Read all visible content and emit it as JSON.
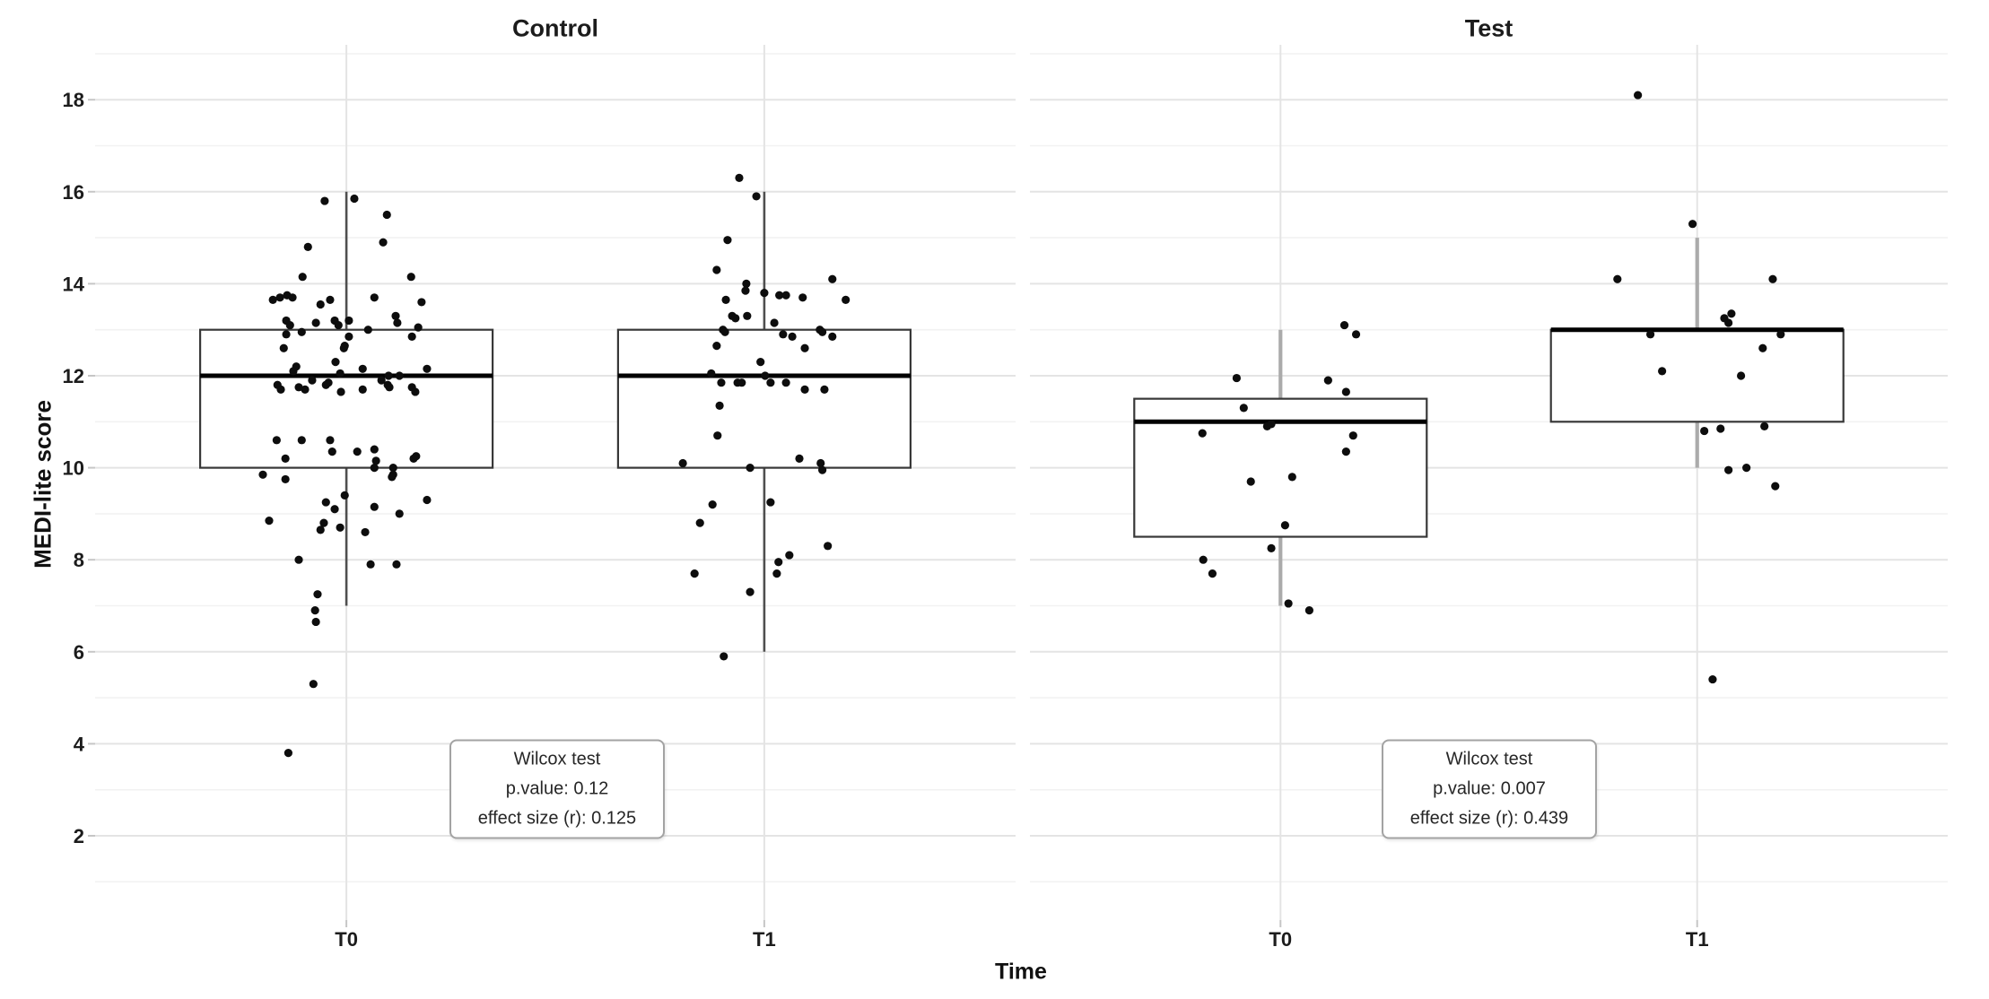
{
  "figure": {
    "background": "#ffffff"
  },
  "chart_data": {
    "type": "boxplot",
    "subtype": "faceted boxplot with jittered points",
    "x_label": "Time",
    "y_label": "MEDI-lite score",
    "categories": [
      "T0",
      "T1"
    ],
    "y_axis": {
      "tick_labels": [
        "18",
        "16",
        "14",
        "12",
        "10",
        "8",
        "6",
        "4",
        "2"
      ],
      "tick_values": [
        18,
        16,
        14,
        12,
        10,
        8,
        6,
        4,
        2
      ],
      "minor_values": [
        19,
        17,
        15,
        13,
        11,
        9,
        7,
        5,
        3,
        1
      ],
      "range": [
        0.2,
        19.2
      ],
      "grid": "on"
    },
    "colors": {
      "background": "#ffffff",
      "grid_major": "#e4e4e4",
      "grid_minor": "#f2f2f2",
      "box_fill": "#ffffff",
      "box_stroke": "#383838",
      "median": "#000000",
      "whisker_control": "#4f4f4f",
      "whisker_test": "#ababab",
      "point": "#0d0d0d",
      "tick": "#c6c6c6",
      "text": "#1c1c1c",
      "annotation_border": "#a3a3a3"
    },
    "facets": [
      {
        "title": "Control",
        "annotation": {
          "lines": [
            "Wilcox test",
            "p.value: 0.12",
            "effect size (r): 0.125"
          ]
        },
        "boxes": [
          {
            "category": "T0",
            "whisker_low": 7,
            "q1": 10,
            "median": 12,
            "q3": 13,
            "whisker_high": 16
          },
          {
            "category": "T1",
            "whisker_low": 6,
            "q1": 10,
            "median": 12,
            "q3": 13,
            "whisker_high": 16
          }
        ],
        "points": {
          "T0": [
            [
              -0.052,
              15.8
            ],
            [
              0.019,
              15.85
            ],
            [
              0.097,
              15.5
            ],
            [
              0.088,
              14.9
            ],
            [
              -0.092,
              14.8
            ],
            [
              -0.105,
              14.15
            ],
            [
              0.155,
              14.15
            ],
            [
              -0.176,
              13.65
            ],
            [
              -0.159,
              13.7
            ],
            [
              -0.142,
              13.75
            ],
            [
              -0.129,
              13.7
            ],
            [
              -0.062,
              13.55
            ],
            [
              -0.039,
              13.65
            ],
            [
              0.067,
              13.7
            ],
            [
              0.18,
              13.6
            ],
            [
              -0.144,
              13.2
            ],
            [
              -0.135,
              13.1
            ],
            [
              -0.073,
              13.15
            ],
            [
              -0.028,
              13.2
            ],
            [
              -0.019,
              13.1
            ],
            [
              0.006,
              13.2
            ],
            [
              0.052,
              13.0
            ],
            [
              0.118,
              13.3
            ],
            [
              0.122,
              13.15
            ],
            [
              0.157,
              12.85
            ],
            [
              0.172,
              13.05
            ],
            [
              -0.144,
              12.9
            ],
            [
              -0.107,
              12.95
            ],
            [
              0.006,
              12.85
            ],
            [
              -0.004,
              12.65
            ],
            [
              -0.006,
              12.6
            ],
            [
              -0.15,
              12.6
            ],
            [
              -0.026,
              12.3
            ],
            [
              -0.015,
              12.05
            ],
            [
              -0.127,
              12.1
            ],
            [
              -0.12,
              12.2
            ],
            [
              0.039,
              12.15
            ],
            [
              0.101,
              12.0
            ],
            [
              0.127,
              12.0
            ],
            [
              0.193,
              12.15
            ],
            [
              -0.082,
              11.9
            ],
            [
              -0.165,
              11.8
            ],
            [
              -0.157,
              11.7
            ],
            [
              -0.114,
              11.75
            ],
            [
              -0.099,
              11.7
            ],
            [
              -0.049,
              11.8
            ],
            [
              -0.043,
              11.85
            ],
            [
              -0.013,
              11.65
            ],
            [
              0.039,
              11.7
            ],
            [
              0.084,
              11.9
            ],
            [
              0.099,
              11.8
            ],
            [
              0.103,
              11.75
            ],
            [
              0.157,
              11.75
            ],
            [
              0.165,
              11.65
            ],
            [
              -0.167,
              10.6
            ],
            [
              -0.107,
              10.6
            ],
            [
              -0.039,
              10.6
            ],
            [
              -0.034,
              10.35
            ],
            [
              0.026,
              10.35
            ],
            [
              0.067,
              10.4
            ],
            [
              0.071,
              10.15
            ],
            [
              -0.146,
              10.2
            ],
            [
              0.161,
              10.2
            ],
            [
              0.167,
              10.25
            ],
            [
              0.067,
              10.0
            ],
            [
              0.112,
              10.0
            ],
            [
              0.112,
              9.85
            ],
            [
              0.109,
              9.8
            ],
            [
              -0.2,
              9.85
            ],
            [
              -0.146,
              9.75
            ],
            [
              -0.004,
              9.4
            ],
            [
              -0.049,
              9.25
            ],
            [
              -0.028,
              9.1
            ],
            [
              0.067,
              9.15
            ],
            [
              0.193,
              9.3
            ],
            [
              0.127,
              9.0
            ],
            [
              -0.185,
              8.85
            ],
            [
              -0.054,
              8.8
            ],
            [
              -0.062,
              8.65
            ],
            [
              -0.015,
              8.7
            ],
            [
              0.045,
              8.6
            ],
            [
              -0.114,
              8.0
            ],
            [
              0.058,
              7.9
            ],
            [
              0.12,
              7.9
            ],
            [
              -0.069,
              7.25
            ],
            [
              -0.075,
              6.9
            ],
            [
              -0.073,
              6.65
            ],
            [
              -0.079,
              5.3
            ],
            [
              -0.139,
              3.8
            ]
          ],
          "T1": [
            [
              -0.06,
              16.3
            ],
            [
              -0.019,
              15.9
            ],
            [
              -0.088,
              14.95
            ],
            [
              -0.114,
              14.3
            ],
            [
              0.163,
              14.1
            ],
            [
              -0.043,
              14.0
            ],
            [
              -0.045,
              13.85
            ],
            [
              0.0,
              13.8
            ],
            [
              0.036,
              13.75
            ],
            [
              0.052,
              13.75
            ],
            [
              0.092,
              13.7
            ],
            [
              0.195,
              13.65
            ],
            [
              -0.092,
              13.65
            ],
            [
              -0.077,
              13.3
            ],
            [
              -0.069,
              13.25
            ],
            [
              -0.041,
              13.3
            ],
            [
              0.024,
              13.15
            ],
            [
              -0.099,
              13.0
            ],
            [
              -0.094,
              12.95
            ],
            [
              0.133,
              13.0
            ],
            [
              0.139,
              12.95
            ],
            [
              0.045,
              12.9
            ],
            [
              0.067,
              12.85
            ],
            [
              0.163,
              12.85
            ],
            [
              0.097,
              12.6
            ],
            [
              -0.114,
              12.65
            ],
            [
              -0.009,
              12.3
            ],
            [
              -0.127,
              12.05
            ],
            [
              -0.103,
              11.85
            ],
            [
              -0.064,
              11.85
            ],
            [
              -0.054,
              11.85
            ],
            [
              0.002,
              12.0
            ],
            [
              0.015,
              11.85
            ],
            [
              0.052,
              11.85
            ],
            [
              0.097,
              11.7
            ],
            [
              0.144,
              11.7
            ],
            [
              -0.107,
              11.35
            ],
            [
              -0.112,
              10.7
            ],
            [
              -0.195,
              10.1
            ],
            [
              -0.034,
              10.0
            ],
            [
              0.084,
              10.2
            ],
            [
              0.135,
              10.1
            ],
            [
              0.139,
              9.95
            ],
            [
              -0.124,
              9.2
            ],
            [
              0.015,
              9.25
            ],
            [
              -0.154,
              8.8
            ],
            [
              0.152,
              8.3
            ],
            [
              0.06,
              8.1
            ],
            [
              0.034,
              7.95
            ],
            [
              0.03,
              7.7
            ],
            [
              -0.167,
              7.7
            ],
            [
              -0.034,
              7.3
            ],
            [
              -0.097,
              5.9
            ]
          ]
        }
      },
      {
        "title": "Test",
        "annotation": {
          "lines": [
            "Wilcox test",
            "p.value: 0.007",
            "effect size (r): 0.439"
          ]
        },
        "boxes": [
          {
            "category": "T0",
            "whisker_low": 7,
            "q1": 8.5,
            "median": 11,
            "q3": 11.5,
            "whisker_high": 13
          },
          {
            "category": "T1",
            "whisker_low": 10,
            "q1": 11,
            "median": 13,
            "q3": 13,
            "whisker_high": 15
          }
        ],
        "points": {
          "T0": [
            [
              0.153,
              13.1
            ],
            [
              0.181,
              12.9
            ],
            [
              -0.105,
              11.95
            ],
            [
              0.114,
              11.9
            ],
            [
              0.157,
              11.65
            ],
            [
              -0.088,
              11.3
            ],
            [
              -0.032,
              10.9
            ],
            [
              -0.022,
              10.95
            ],
            [
              -0.187,
              10.75
            ],
            [
              0.174,
              10.7
            ],
            [
              0.157,
              10.35
            ],
            [
              -0.071,
              9.7
            ],
            [
              0.028,
              9.8
            ],
            [
              0.011,
              8.75
            ],
            [
              -0.022,
              8.25
            ],
            [
              -0.185,
              8.0
            ],
            [
              -0.163,
              7.7
            ],
            [
              0.019,
              7.05
            ],
            [
              0.069,
              6.9
            ]
          ],
          "T1": [
            [
              -0.142,
              18.1
            ],
            [
              -0.011,
              15.3
            ],
            [
              -0.191,
              14.1
            ],
            [
              0.181,
              14.1
            ],
            [
              0.065,
              13.25
            ],
            [
              0.082,
              13.35
            ],
            [
              0.075,
              13.15
            ],
            [
              -0.112,
              12.9
            ],
            [
              0.2,
              12.9
            ],
            [
              0.157,
              12.6
            ],
            [
              -0.084,
              12.1
            ],
            [
              0.105,
              12.0
            ],
            [
              0.017,
              10.8
            ],
            [
              0.056,
              10.85
            ],
            [
              0.161,
              10.9
            ],
            [
              0.075,
              9.95
            ],
            [
              0.118,
              10.0
            ],
            [
              0.187,
              9.6
            ],
            [
              0.037,
              5.4
            ]
          ]
        }
      }
    ]
  }
}
